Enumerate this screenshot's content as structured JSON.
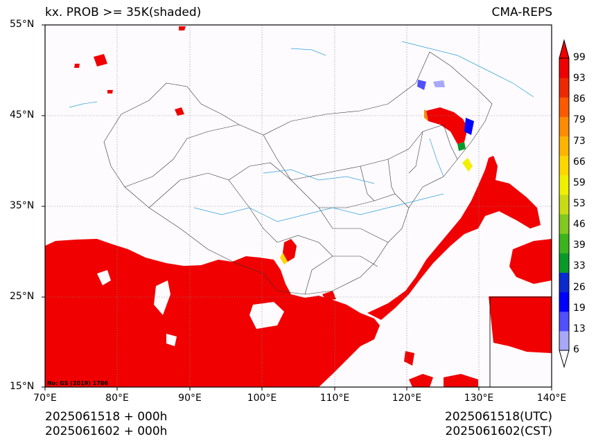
{
  "title": {
    "left": "kx. PROB >= 35K(shaded)",
    "right": "CMA-REPS"
  },
  "axes": {
    "lat_labels": [
      "55°N",
      "45°N",
      "35°N",
      "25°N",
      "15°N"
    ],
    "lat_values": [
      55,
      45,
      35,
      25,
      15
    ],
    "lon_labels": [
      "70°E",
      "80°E",
      "90°E",
      "100°E",
      "110°E",
      "120°E",
      "130°E",
      "140°E"
    ],
    "lon_values": [
      70,
      80,
      90,
      100,
      110,
      120,
      130,
      140
    ]
  },
  "colorbar": {
    "ticks": [
      "99",
      "93",
      "86",
      "79",
      "73",
      "66",
      "59",
      "53",
      "46",
      "39",
      "33",
      "26",
      "19",
      "13",
      "6"
    ],
    "colors": [
      "#a8a8f8",
      "#5050ff",
      "#0000ff",
      "#0a2ad0",
      "#0a9a2a",
      "#3cb41e",
      "#82c81e",
      "#c8dc14",
      "#f0f000",
      "#ffd700",
      "#ffb400",
      "#ff8c00",
      "#ff5a00",
      "#f02800",
      "#f00000"
    ]
  },
  "footer": {
    "left_line1": "2025061518  +  000h",
    "left_line2": "2025061602  +  000h",
    "right_line1": "2025061518(UTC)",
    "right_line2": "2025061602(CST)"
  },
  "map_note": "No: GS (2019) 1786"
}
